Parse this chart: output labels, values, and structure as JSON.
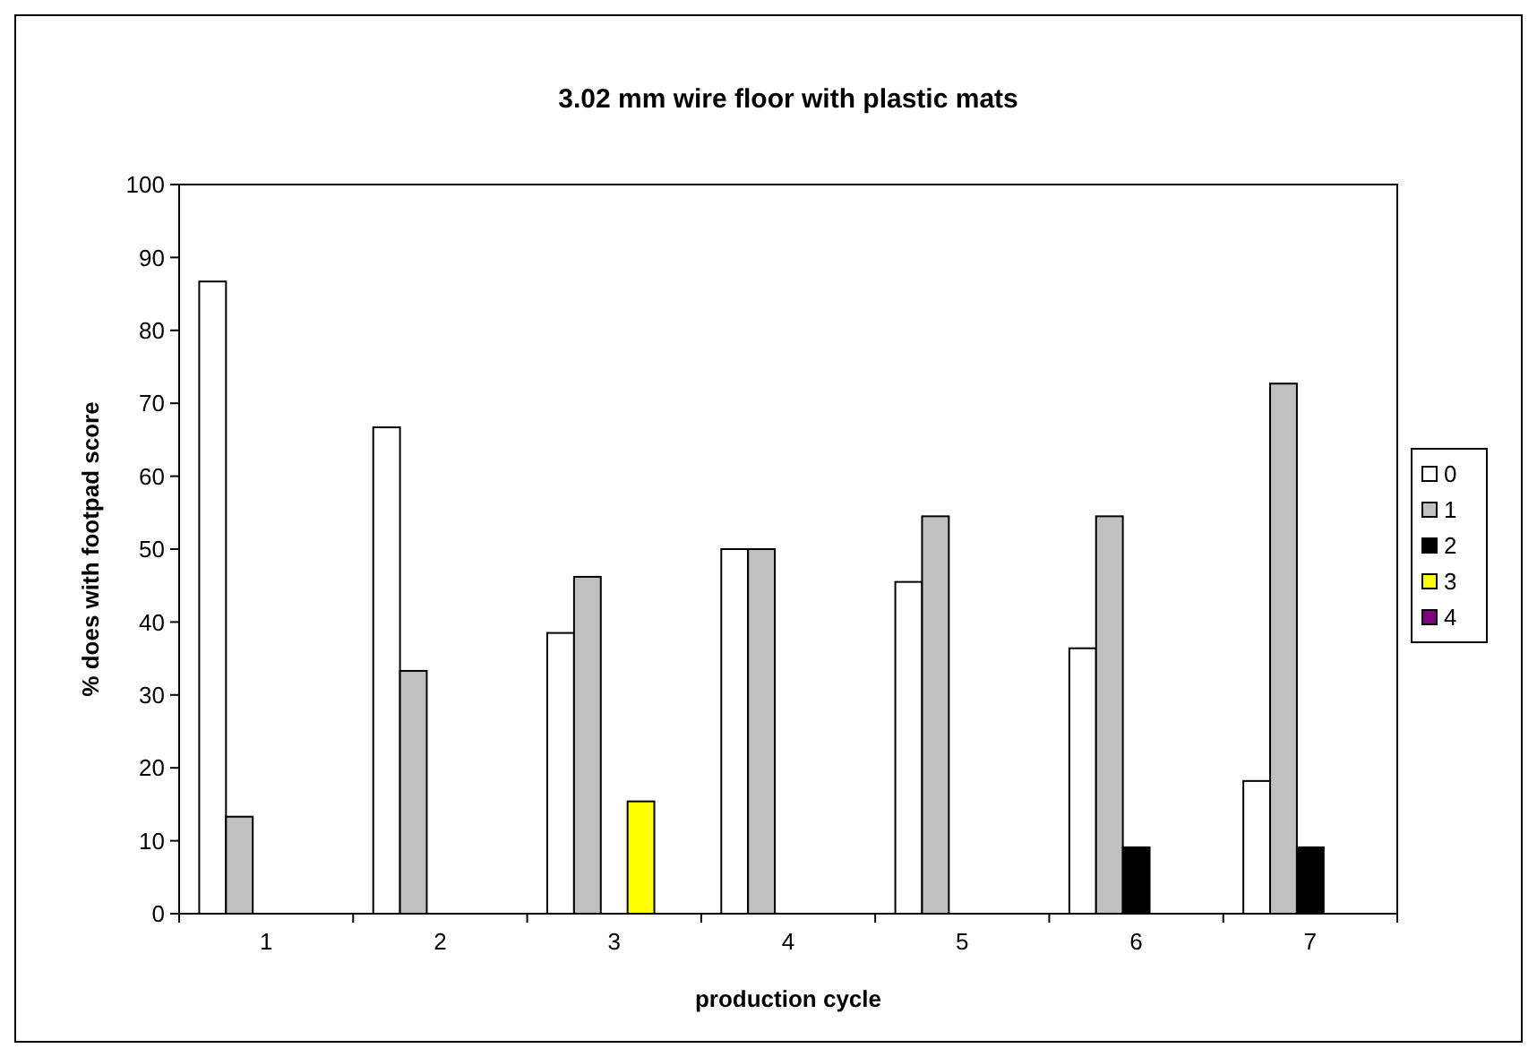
{
  "chart_data": {
    "type": "bar",
    "title": "3.02 mm wire floor with plastic mats",
    "xlabel": "production cycle",
    "ylabel": "% does with footpad score",
    "categories": [
      "1",
      "2",
      "3",
      "4",
      "5",
      "6",
      "7"
    ],
    "series": [
      {
        "name": "0",
        "color": "#ffffff",
        "values": [
          86.7,
          66.7,
          38.5,
          50,
          45.5,
          36.4,
          18.2
        ]
      },
      {
        "name": "1",
        "color": "#c0c0c0",
        "values": [
          13.3,
          33.3,
          46.2,
          50,
          54.5,
          54.5,
          72.7
        ]
      },
      {
        "name": "2",
        "color": "#000000",
        "values": [
          0,
          0,
          0,
          0,
          0,
          9.1,
          9.1
        ]
      },
      {
        "name": "3",
        "color": "#ffff00",
        "values": [
          0,
          0,
          15.4,
          0,
          0,
          0,
          0
        ]
      },
      {
        "name": "4",
        "color": "#800080",
        "values": [
          0,
          0,
          0,
          0,
          0,
          0,
          0
        ]
      }
    ],
    "ylim": [
      0,
      100
    ],
    "yticks": [
      0,
      10,
      20,
      30,
      40,
      50,
      60,
      70,
      80,
      90,
      100
    ],
    "grid": false,
    "legend": "right"
  }
}
